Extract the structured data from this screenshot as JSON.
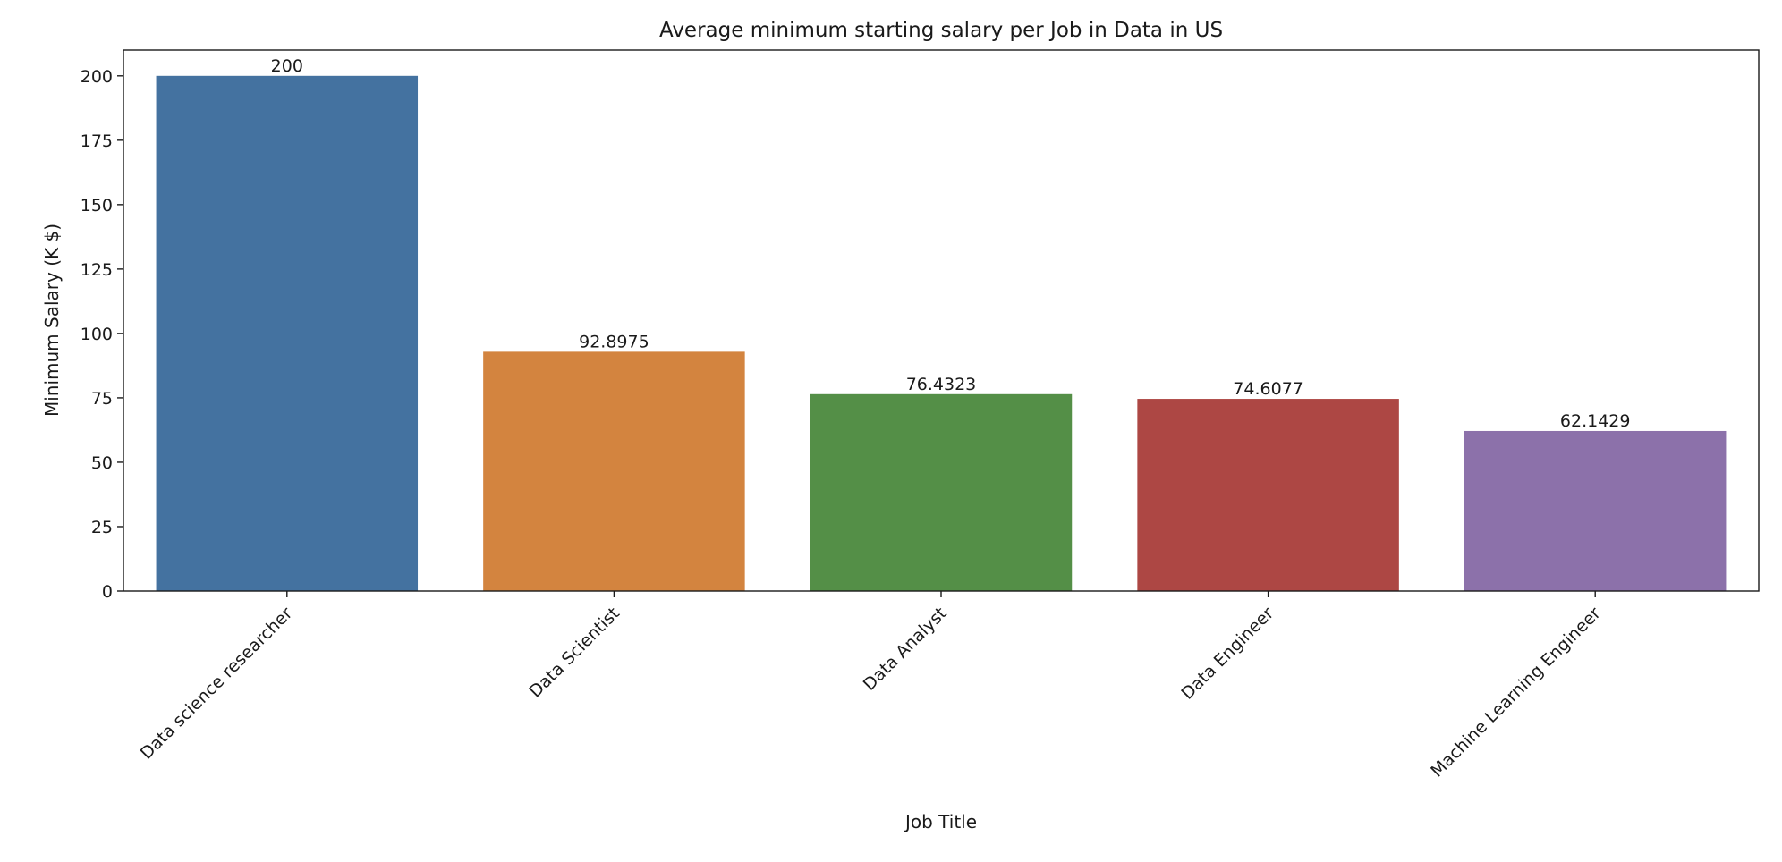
{
  "chart_data": {
    "type": "bar",
    "title": "Average minimum starting salary per Job in Data in US",
    "xlabel": "Job Title",
    "ylabel": "Minimum Salary (K $)",
    "categories": [
      "Data science researcher",
      "Data Scientist",
      "Data Analyst",
      "Data Engineer",
      "Machine Learning Engineer"
    ],
    "values": [
      200,
      92.8975,
      76.4323,
      74.6077,
      62.1429
    ],
    "value_labels": [
      "200",
      "92.8975",
      "76.4323",
      "74.6077",
      "62.1429"
    ],
    "colors": [
      "#4472a0",
      "#d3843f",
      "#548f47",
      "#ad4744",
      "#8c71aa"
    ],
    "ylim": [
      0,
      210
    ],
    "yticks": [
      0,
      25,
      50,
      75,
      100,
      125,
      150,
      175,
      200
    ],
    "grid": false,
    "legend": false
  }
}
